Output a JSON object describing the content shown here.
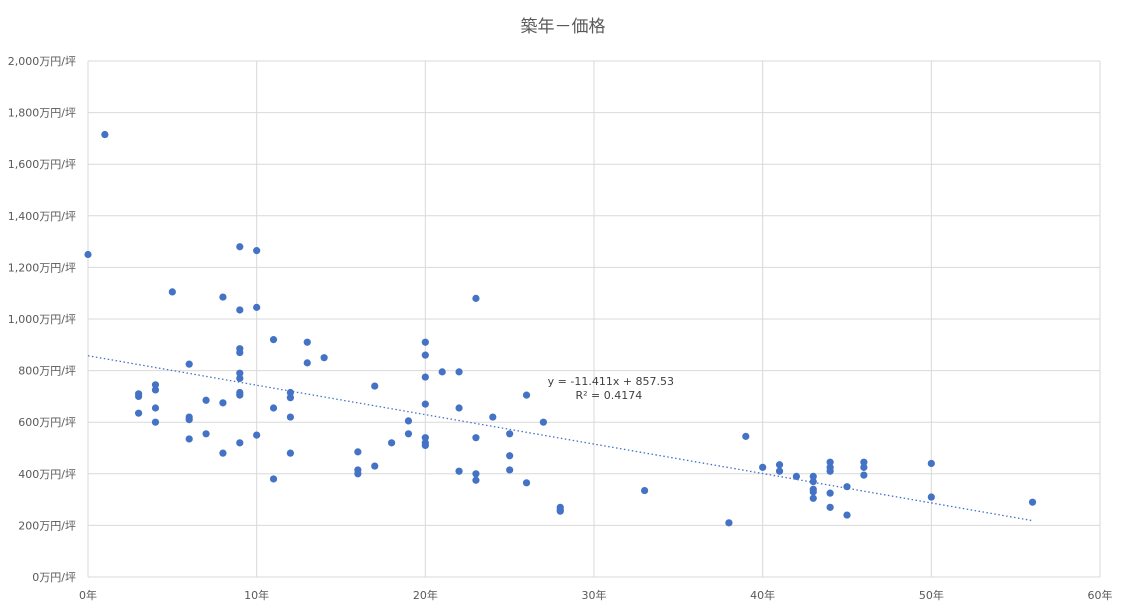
{
  "chart_data": {
    "type": "scatter",
    "title": "築年－価格",
    "x_unit_suffix": "年",
    "y_unit_suffix": "万円/坪",
    "xlim": [
      0,
      60
    ],
    "ylim": [
      0,
      2000
    ],
    "x_ticks": [
      0,
      10,
      20,
      30,
      40,
      50,
      60
    ],
    "y_ticks": [
      0,
      200,
      400,
      600,
      800,
      1000,
      1200,
      1400,
      1600,
      1800,
      2000
    ],
    "grid": true,
    "legend": "none",
    "color": "#4472c4",
    "points": [
      [
        0,
        1250
      ],
      [
        1,
        1715
      ],
      [
        3,
        710
      ],
      [
        3,
        700
      ],
      [
        3,
        635
      ],
      [
        4,
        745
      ],
      [
        4,
        725
      ],
      [
        4,
        655
      ],
      [
        4,
        600
      ],
      [
        5,
        1105
      ],
      [
        6,
        825
      ],
      [
        6,
        620
      ],
      [
        6,
        610
      ],
      [
        6,
        535
      ],
      [
        7,
        685
      ],
      [
        7,
        555
      ],
      [
        8,
        1085
      ],
      [
        8,
        675
      ],
      [
        8,
        480
      ],
      [
        9,
        1280
      ],
      [
        9,
        1035
      ],
      [
        9,
        885
      ],
      [
        9,
        870
      ],
      [
        9,
        790
      ],
      [
        9,
        770
      ],
      [
        9,
        715
      ],
      [
        9,
        705
      ],
      [
        9,
        520
      ],
      [
        10,
        1265
      ],
      [
        10,
        1045
      ],
      [
        10,
        550
      ],
      [
        11,
        920
      ],
      [
        11,
        655
      ],
      [
        11,
        380
      ],
      [
        12,
        715
      ],
      [
        12,
        695
      ],
      [
        12,
        620
      ],
      [
        12,
        480
      ],
      [
        13,
        910
      ],
      [
        13,
        830
      ],
      [
        14,
        850
      ],
      [
        16,
        485
      ],
      [
        16,
        415
      ],
      [
        16,
        400
      ],
      [
        17,
        740
      ],
      [
        17,
        430
      ],
      [
        18,
        520
      ],
      [
        19,
        605
      ],
      [
        19,
        555
      ],
      [
        20,
        910
      ],
      [
        20,
        860
      ],
      [
        20,
        775
      ],
      [
        20,
        670
      ],
      [
        20,
        540
      ],
      [
        20,
        520
      ],
      [
        20,
        510
      ],
      [
        21,
        795
      ],
      [
        22,
        795
      ],
      [
        22,
        655
      ],
      [
        22,
        410
      ],
      [
        23,
        1080
      ],
      [
        23,
        540
      ],
      [
        23,
        400
      ],
      [
        23,
        375
      ],
      [
        24,
        620
      ],
      [
        25,
        555
      ],
      [
        25,
        470
      ],
      [
        25,
        415
      ],
      [
        26,
        705
      ],
      [
        26,
        365
      ],
      [
        27,
        600
      ],
      [
        28,
        270
      ],
      [
        28,
        260
      ],
      [
        28,
        255
      ],
      [
        33,
        335
      ],
      [
        38,
        210
      ],
      [
        39,
        545
      ],
      [
        40,
        425
      ],
      [
        41,
        435
      ],
      [
        41,
        410
      ],
      [
        42,
        390
      ],
      [
        43,
        390
      ],
      [
        43,
        370
      ],
      [
        43,
        340
      ],
      [
        43,
        330
      ],
      [
        43,
        305
      ],
      [
        44,
        445
      ],
      [
        44,
        425
      ],
      [
        44,
        410
      ],
      [
        44,
        325
      ],
      [
        44,
        270
      ],
      [
        45,
        350
      ],
      [
        45,
        240
      ],
      [
        46,
        445
      ],
      [
        46,
        425
      ],
      [
        46,
        395
      ],
      [
        50,
        440
      ],
      [
        50,
        310
      ],
      [
        56,
        290
      ]
    ],
    "trendline": {
      "slope": -11.411,
      "intercept": 857.53,
      "x_range": [
        0,
        56
      ],
      "equation_label": "y = -11.411x + 857.53",
      "r2_label": "R² = 0.4174",
      "label_anchor": [
        31,
        745
      ]
    }
  }
}
